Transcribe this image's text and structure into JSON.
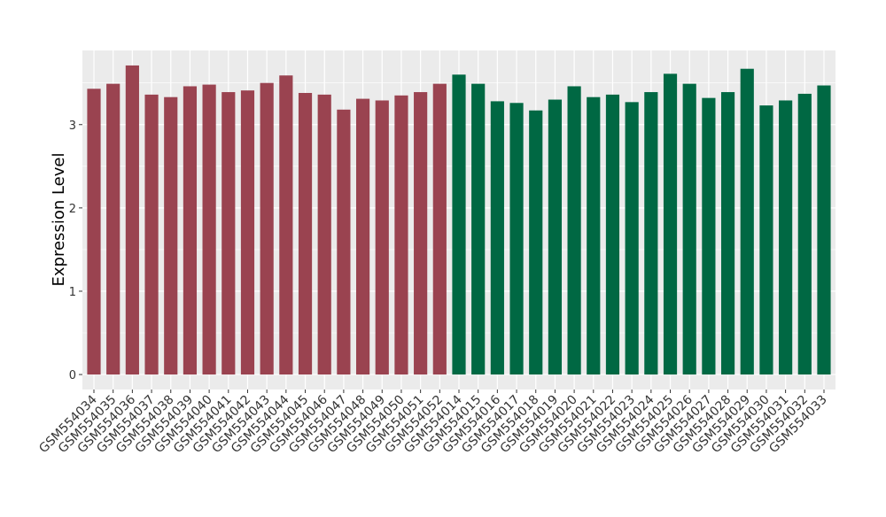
{
  "chart_data": {
    "type": "bar",
    "y_label": "Expression Level",
    "categories": [
      "GSM554034",
      "GSM554035",
      "GSM554036",
      "GSM554037",
      "GSM554038",
      "GSM554039",
      "GSM554040",
      "GSM554041",
      "GSM554042",
      "GSM554043",
      "GSM554044",
      "GSM554045",
      "GSM554046",
      "GSM554047",
      "GSM554048",
      "GSM554049",
      "GSM554050",
      "GSM554051",
      "GSM554052",
      "GSM554014",
      "GSM554015",
      "GSM554016",
      "GSM554017",
      "GSM554018",
      "GSM554019",
      "GSM554020",
      "GSM554021",
      "GSM554022",
      "GSM554023",
      "GSM554024",
      "GSM554025",
      "GSM554026",
      "GSM554027",
      "GSM554028",
      "GSM554029",
      "GSM554030",
      "GSM554031",
      "GSM554032",
      "GSM554033"
    ],
    "values": [
      3.43,
      3.49,
      3.71,
      3.36,
      3.33,
      3.46,
      3.48,
      3.39,
      3.41,
      3.5,
      3.59,
      3.38,
      3.36,
      3.18,
      3.31,
      3.29,
      3.35,
      3.39,
      3.49,
      3.6,
      3.49,
      3.28,
      3.26,
      3.17,
      3.3,
      3.46,
      3.33,
      3.36,
      3.27,
      3.39,
      3.61,
      3.49,
      3.32,
      3.39,
      3.67,
      3.23,
      3.29,
      3.37,
      3.47
    ],
    "colors": [
      "#9a4350",
      "#9a4350",
      "#9a4350",
      "#9a4350",
      "#9a4350",
      "#9a4350",
      "#9a4350",
      "#9a4350",
      "#9a4350",
      "#9a4350",
      "#9a4350",
      "#9a4350",
      "#9a4350",
      "#9a4350",
      "#9a4350",
      "#9a4350",
      "#9a4350",
      "#9a4350",
      "#9a4350",
      "#006843",
      "#006843",
      "#006843",
      "#006843",
      "#006843",
      "#006843",
      "#006843",
      "#006843",
      "#006843",
      "#006843",
      "#006843",
      "#006843",
      "#006843",
      "#006843",
      "#006843",
      "#006843",
      "#006843",
      "#006843",
      "#006843",
      "#006843"
    ],
    "ylim": [
      -0.18,
      3.89
    ],
    "yticks": [
      0,
      1,
      2,
      3
    ],
    "grid": true
  }
}
